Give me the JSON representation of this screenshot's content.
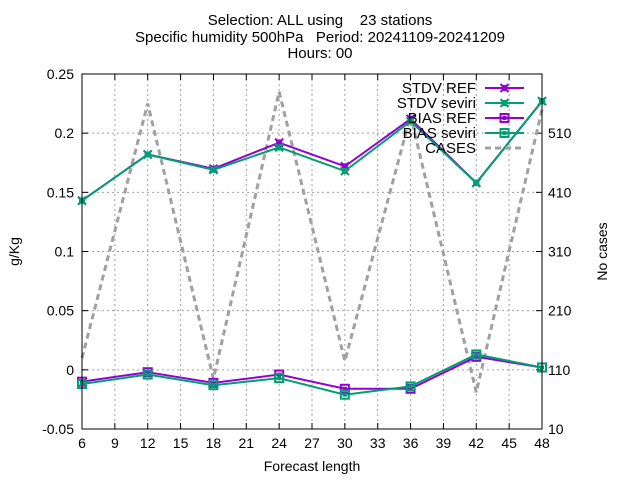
{
  "chart_data": {
    "type": "line",
    "title_lines": [
      "Selection: ALL using    23 stations",
      "Specific humidity 500hPa   Period: 20241109-20241209",
      "Hours: 00"
    ],
    "xlabel": "Forecast length",
    "ylabel": "g/Kg",
    "y2label": "No cases",
    "xlim": [
      6,
      48
    ],
    "ylim": [
      -0.05,
      0.25
    ],
    "y2lim": [
      10,
      610
    ],
    "xticks": [
      6,
      9,
      12,
      15,
      18,
      21,
      24,
      27,
      30,
      33,
      36,
      39,
      42,
      45,
      48
    ],
    "yticks": [
      -0.05,
      0,
      0.05,
      0.1,
      0.15,
      0.2,
      0.25
    ],
    "ytick_labels": [
      "-0.05",
      "0",
      "0.05",
      "0.1",
      "0.15",
      "0.2",
      "0.25"
    ],
    "y2ticks": [
      10,
      110,
      210,
      310,
      410,
      510
    ],
    "grid": true,
    "legend_position": "top-right",
    "x": [
      6,
      12,
      18,
      24,
      30,
      36,
      42,
      48
    ],
    "series": [
      {
        "name": "STDV REF",
        "axis": "y",
        "color": "#9400d3",
        "marker": "x",
        "dash": false,
        "values": [
          0.143,
          0.182,
          0.17,
          0.192,
          0.172,
          0.212,
          0.158,
          0.227
        ]
      },
      {
        "name": "STDV seviri",
        "axis": "y",
        "color": "#009e73",
        "marker": "x",
        "dash": false,
        "values": [
          0.143,
          0.182,
          0.169,
          0.188,
          0.168,
          0.21,
          0.158,
          0.227
        ]
      },
      {
        "name": "BIAS REF",
        "axis": "y",
        "color": "#9400d3",
        "marker": "square",
        "dash": false,
        "values": [
          -0.01,
          -0.002,
          -0.011,
          -0.004,
          -0.016,
          -0.016,
          0.011,
          0.002
        ]
      },
      {
        "name": "BIAS seviri",
        "axis": "y",
        "color": "#009e73",
        "marker": "square",
        "dash": false,
        "values": [
          -0.012,
          -0.004,
          -0.013,
          -0.007,
          -0.021,
          -0.014,
          0.013,
          0.002
        ]
      },
      {
        "name": "CASES",
        "axis": "y2",
        "color": "#a0a0a0",
        "marker": "none",
        "dash": true,
        "values": [
          130,
          560,
          95,
          580,
          125,
          540,
          72,
          550
        ]
      }
    ]
  }
}
